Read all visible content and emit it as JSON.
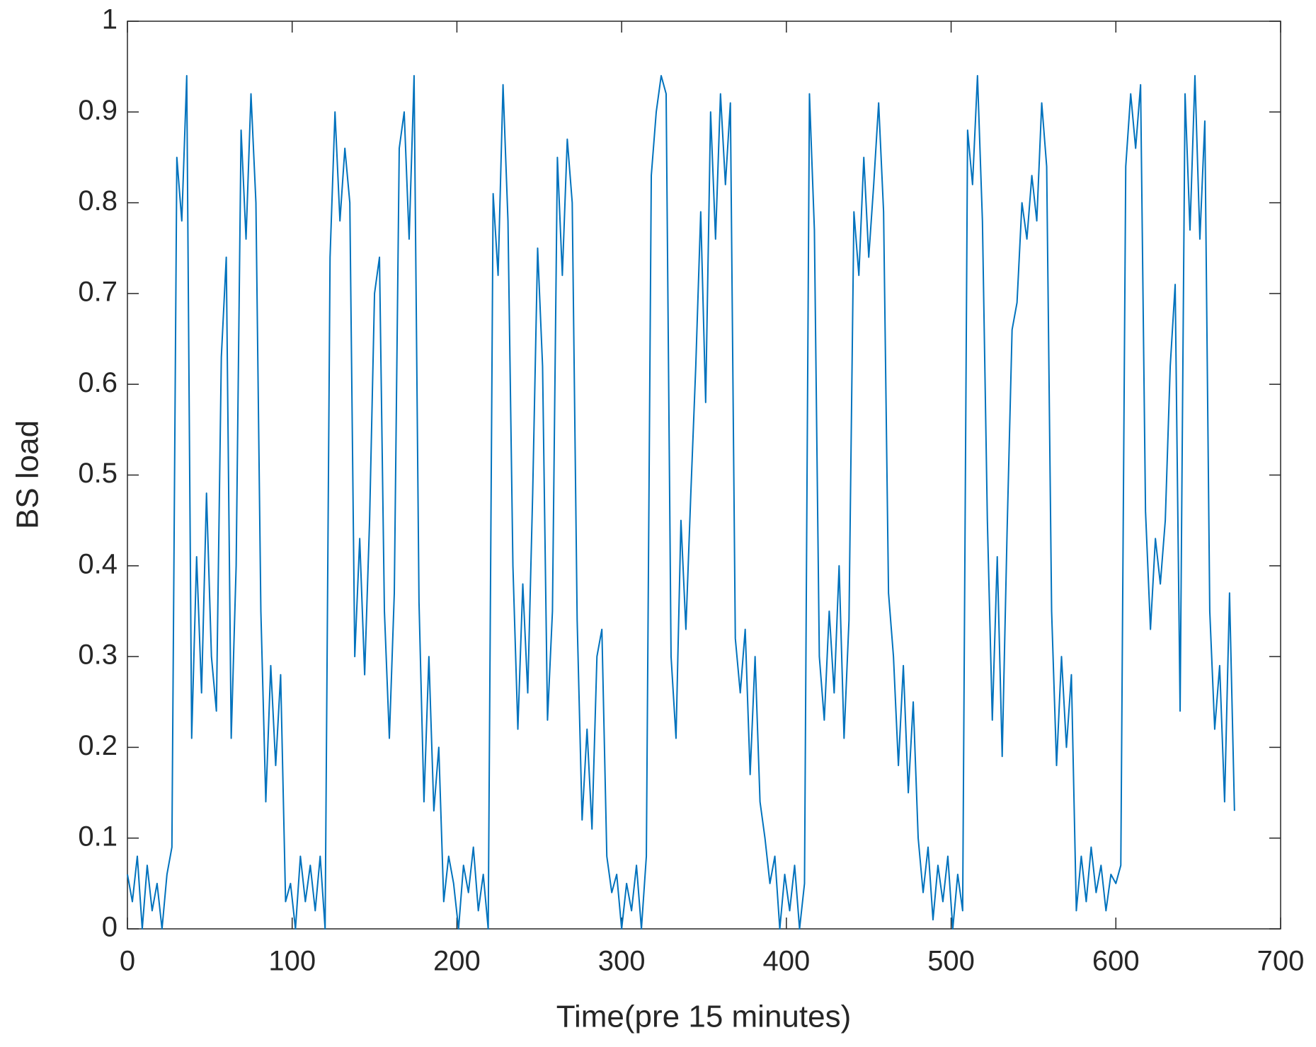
{
  "chart_data": {
    "type": "line",
    "x_label": "Time(pre 15 minutes)",
    "y_label": "BS load",
    "xlim": [
      0,
      700
    ],
    "xticks": [
      0,
      100,
      200,
      300,
      400,
      500,
      600,
      700
    ],
    "ylim": [
      0,
      1
    ],
    "yticks": [
      0,
      0.1,
      0.2,
      0.3,
      0.4,
      0.5,
      0.6,
      0.7,
      0.8,
      0.9,
      1
    ],
    "grid": false,
    "x": [
      0,
      3,
      6,
      9,
      12,
      15,
      18,
      21,
      24,
      27,
      30,
      33,
      36,
      39,
      42,
      45,
      48,
      51,
      54,
      57,
      60,
      63,
      66,
      69,
      72,
      75,
      78,
      81,
      84,
      87,
      90,
      93,
      96,
      99,
      102,
      105,
      108,
      111,
      114,
      117,
      120,
      123,
      126,
      129,
      132,
      135,
      138,
      141,
      144,
      147,
      150,
      153,
      156,
      159,
      162,
      165,
      168,
      171,
      174,
      177,
      180,
      183,
      186,
      189,
      192,
      195,
      198,
      201,
      204,
      207,
      210,
      213,
      216,
      219,
      222,
      225,
      228,
      231,
      234,
      237,
      240,
      243,
      246,
      249,
      252,
      255,
      258,
      261,
      264,
      267,
      270,
      273,
      276,
      279,
      282,
      285,
      288,
      291,
      294,
      297,
      300,
      303,
      306,
      309,
      312,
      315,
      318,
      321,
      324,
      327,
      330,
      333,
      336,
      339,
      342,
      345,
      348,
      351,
      354,
      357,
      360,
      363,
      366,
      369,
      372,
      375,
      378,
      381,
      384,
      387,
      390,
      393,
      396,
      399,
      402,
      405,
      408,
      411,
      414,
      417,
      420,
      423,
      426,
      429,
      432,
      435,
      438,
      441,
      444,
      447,
      450,
      453,
      456,
      459,
      462,
      465,
      468,
      471,
      474,
      477,
      480,
      483,
      486,
      489,
      492,
      495,
      498,
      501,
      504,
      507,
      510,
      513,
      516,
      519,
      522,
      525,
      528,
      531,
      534,
      537,
      540,
      543,
      546,
      549,
      552,
      555,
      558,
      561,
      564,
      567,
      570,
      573,
      576,
      579,
      582,
      585,
      588,
      591,
      594,
      597,
      600,
      603,
      606,
      609,
      612,
      615,
      618,
      621,
      624,
      627,
      630,
      633,
      636,
      639,
      642,
      645,
      648,
      651,
      654,
      657,
      660,
      663,
      666,
      669,
      672
    ],
    "series": [
      {
        "name": "BS load",
        "color": "#0072BD",
        "values": [
          0.06,
          0.03,
          0.08,
          0.0,
          0.07,
          0.02,
          0.05,
          0.0,
          0.06,
          0.09,
          0.85,
          0.78,
          0.94,
          0.21,
          0.41,
          0.26,
          0.48,
          0.3,
          0.24,
          0.63,
          0.74,
          0.21,
          0.4,
          0.88,
          0.76,
          0.92,
          0.8,
          0.35,
          0.14,
          0.29,
          0.18,
          0.28,
          0.03,
          0.05,
          0.0,
          0.08,
          0.03,
          0.07,
          0.02,
          0.08,
          0.0,
          0.74,
          0.9,
          0.78,
          0.86,
          0.8,
          0.3,
          0.43,
          0.28,
          0.45,
          0.7,
          0.74,
          0.35,
          0.21,
          0.37,
          0.86,
          0.9,
          0.76,
          0.94,
          0.36,
          0.14,
          0.3,
          0.13,
          0.2,
          0.03,
          0.08,
          0.05,
          0.0,
          0.07,
          0.04,
          0.09,
          0.02,
          0.06,
          0.0,
          0.81,
          0.72,
          0.93,
          0.78,
          0.4,
          0.22,
          0.38,
          0.26,
          0.48,
          0.75,
          0.62,
          0.23,
          0.35,
          0.85,
          0.72,
          0.87,
          0.8,
          0.34,
          0.12,
          0.22,
          0.11,
          0.3,
          0.33,
          0.08,
          0.04,
          0.06,
          0.0,
          0.05,
          0.02,
          0.07,
          0.0,
          0.08,
          0.83,
          0.9,
          0.94,
          0.92,
          0.3,
          0.21,
          0.45,
          0.33,
          0.48,
          0.62,
          0.79,
          0.58,
          0.9,
          0.76,
          0.92,
          0.82,
          0.91,
          0.32,
          0.26,
          0.33,
          0.17,
          0.3,
          0.14,
          0.1,
          0.05,
          0.08,
          0.0,
          0.06,
          0.02,
          0.07,
          0.0,
          0.05,
          0.92,
          0.77,
          0.3,
          0.23,
          0.35,
          0.26,
          0.4,
          0.21,
          0.34,
          0.79,
          0.72,
          0.85,
          0.74,
          0.82,
          0.91,
          0.79,
          0.37,
          0.3,
          0.18,
          0.29,
          0.15,
          0.25,
          0.1,
          0.04,
          0.09,
          0.01,
          0.07,
          0.03,
          0.08,
          0.0,
          0.06,
          0.02,
          0.88,
          0.82,
          0.94,
          0.78,
          0.45,
          0.23,
          0.41,
          0.19,
          0.44,
          0.66,
          0.69,
          0.8,
          0.76,
          0.83,
          0.78,
          0.91,
          0.84,
          0.35,
          0.18,
          0.3,
          0.2,
          0.28,
          0.02,
          0.08,
          0.03,
          0.09,
          0.04,
          0.07,
          0.02,
          0.06,
          0.05,
          0.07,
          0.84,
          0.92,
          0.86,
          0.93,
          0.46,
          0.33,
          0.43,
          0.38,
          0.45,
          0.62,
          0.71,
          0.24,
          0.92,
          0.77,
          0.94,
          0.76,
          0.89,
          0.35,
          0.22,
          0.29,
          0.14,
          0.37,
          0.13
        ]
      }
    ]
  }
}
